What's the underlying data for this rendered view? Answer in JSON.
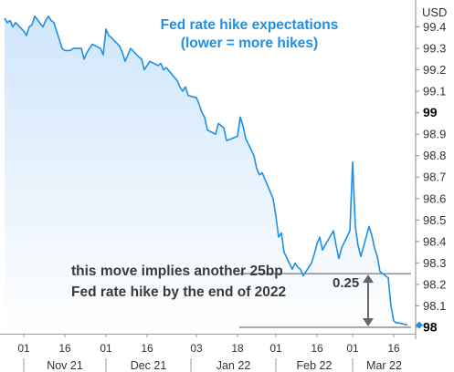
{
  "chart_data": {
    "type": "area",
    "title": [
      "Fed rate hike expectations",
      "(lower = more hikes)"
    ],
    "unit": "USD",
    "ylim": [
      97.97,
      99.5
    ],
    "y_ticks": [
      98,
      98.1,
      98.2,
      98.3,
      98.4,
      98.5,
      98.6,
      98.7,
      98.8,
      98.9,
      99,
      99.1,
      99.2,
      99.3,
      99.4
    ],
    "y_tick_labels": [
      "98",
      "98.1",
      "98.2",
      "98.3",
      "98.4",
      "98.5",
      "98.6",
      "98.7",
      "98.8",
      "98.9",
      "99",
      "99.1",
      "99.2",
      "99.3",
      "99.4"
    ],
    "y_bold_ticks": [
      "98",
      "99"
    ],
    "x_start": "2021-10-25",
    "x_end": "2022-03-24",
    "x_ticks": [
      {
        "date": "2021-11-01",
        "label": "01"
      },
      {
        "date": "2021-11-16",
        "label": "16"
      },
      {
        "date": "2021-12-01",
        "label": "01"
      },
      {
        "date": "2021-12-16",
        "label": "16"
      },
      {
        "date": "2022-01-03",
        "label": "03"
      },
      {
        "date": "2022-01-18",
        "label": "18"
      },
      {
        "date": "2022-02-01",
        "label": "01"
      },
      {
        "date": "2022-02-16",
        "label": "16"
      },
      {
        "date": "2022-03-01",
        "label": "01"
      },
      {
        "date": "2022-03-16",
        "label": "16"
      }
    ],
    "months": [
      {
        "label": "Nov 21",
        "start": "2021-11-01",
        "end": "2021-12-01"
      },
      {
        "label": "Dec 21",
        "start": "2021-12-01",
        "end": "2022-01-01"
      },
      {
        "label": "Jan 22",
        "start": "2022-01-01",
        "end": "2022-02-01"
      },
      {
        "label": "Feb 22",
        "start": "2022-02-01",
        "end": "2022-03-01"
      },
      {
        "label": "Mar 22",
        "start": "2022-03-01",
        "end": "2022-03-24"
      }
    ],
    "series": [
      {
        "x": [
          "2021-10-25",
          "2021-10-26",
          "2021-10-27",
          "2021-10-28",
          "2021-10-29",
          "2021-11-01",
          "2021-11-02",
          "2021-11-03",
          "2021-11-04",
          "2021-11-05",
          "2021-11-08",
          "2021-11-09",
          "2021-11-10",
          "2021-11-11",
          "2021-11-12",
          "2021-11-15",
          "2021-11-16",
          "2021-11-17",
          "2021-11-18",
          "2021-11-19",
          "2021-11-22",
          "2021-11-23",
          "2021-11-24",
          "2021-11-26",
          "2021-11-29",
          "2021-11-30",
          "2021-12-01",
          "2021-12-02",
          "2021-12-03",
          "2021-12-06",
          "2021-12-07",
          "2021-12-08",
          "2021-12-09",
          "2021-12-10",
          "2021-12-13",
          "2021-12-14",
          "2021-12-15",
          "2021-12-16",
          "2021-12-17",
          "2021-12-20",
          "2021-12-21",
          "2021-12-22",
          "2021-12-23",
          "2021-12-27",
          "2021-12-28",
          "2021-12-29",
          "2021-12-30",
          "2021-12-31",
          "2022-01-03",
          "2022-01-04",
          "2022-01-05",
          "2022-01-06",
          "2022-01-07",
          "2022-01-10",
          "2022-01-11",
          "2022-01-12",
          "2022-01-13",
          "2022-01-14",
          "2022-01-18",
          "2022-01-19",
          "2022-01-20",
          "2022-01-21",
          "2022-01-24",
          "2022-01-25",
          "2022-01-26",
          "2022-01-27",
          "2022-01-28",
          "2022-01-31",
          "2022-02-01",
          "2022-02-02",
          "2022-02-03",
          "2022-02-04",
          "2022-02-07",
          "2022-02-08",
          "2022-02-09",
          "2022-02-10",
          "2022-02-11",
          "2022-02-14",
          "2022-02-15",
          "2022-02-16",
          "2022-02-17",
          "2022-02-18",
          "2022-02-22",
          "2022-02-23",
          "2022-02-24",
          "2022-02-25",
          "2022-02-28",
          "2022-03-01",
          "2022-03-02",
          "2022-03-03",
          "2022-03-04",
          "2022-03-07",
          "2022-03-08",
          "2022-03-09",
          "2022-03-10",
          "2022-03-11",
          "2022-03-14",
          "2022-03-15",
          "2022-03-16",
          "2022-03-17",
          "2022-03-18",
          "2022-03-21"
        ],
        "values": [
          99.44,
          99.42,
          99.43,
          99.4,
          99.42,
          99.38,
          99.36,
          99.4,
          99.41,
          99.45,
          99.4,
          99.43,
          99.45,
          99.43,
          99.42,
          99.3,
          99.29,
          99.29,
          99.29,
          99.3,
          99.3,
          99.25,
          99.28,
          99.32,
          99.3,
          99.27,
          99.39,
          99.36,
          99.35,
          99.31,
          99.28,
          99.24,
          99.27,
          99.3,
          99.26,
          99.25,
          99.2,
          99.22,
          99.24,
          99.22,
          99.23,
          99.2,
          99.21,
          99.15,
          99.12,
          99.1,
          99.12,
          99.08,
          99.07,
          99.04,
          99.0,
          98.98,
          98.92,
          98.9,
          98.95,
          98.94,
          98.93,
          98.87,
          98.89,
          98.98,
          98.94,
          98.88,
          98.8,
          98.74,
          98.71,
          98.72,
          98.69,
          98.6,
          98.52,
          98.42,
          98.44,
          98.35,
          98.27,
          98.3,
          98.28,
          98.27,
          98.24,
          98.3,
          98.34,
          98.39,
          98.42,
          98.36,
          98.45,
          98.38,
          98.32,
          98.37,
          98.45,
          98.77,
          98.47,
          98.38,
          98.33,
          98.47,
          98.43,
          98.37,
          98.33,
          98.26,
          98.23,
          98.1,
          98.03,
          98.02,
          98.02,
          98.01
        ],
        "line_color": "#1f8fe6",
        "fill_top": "#cfe6fa",
        "fill_bottom": "#ffffff"
      }
    ],
    "reference_lines": [
      98.25,
      98.0
    ],
    "delta_label": "0.25",
    "annotation": [
      "this move implies another 25bp",
      "Fed rate hike by the end of 2022"
    ],
    "grid": false
  }
}
